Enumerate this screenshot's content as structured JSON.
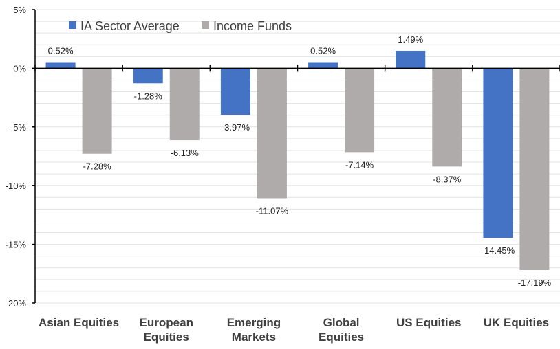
{
  "chart_data": {
    "type": "bar",
    "categories": [
      [
        "Asian Equities"
      ],
      [
        "European",
        "Equities"
      ],
      [
        "Emerging",
        "Markets"
      ],
      [
        "Global",
        "Equities"
      ],
      [
        "US Equities"
      ],
      [
        "UK Equities"
      ]
    ],
    "series": [
      {
        "name": "IA Sector Average",
        "color": "#4472C4",
        "values": [
          0.52,
          -1.28,
          -3.97,
          0.52,
          1.49,
          -14.45
        ],
        "labels": [
          "0.52%",
          "-1.28%",
          "-3.97%",
          "0.52%",
          "1.49%",
          "-14.45%"
        ]
      },
      {
        "name": "Income Funds",
        "color": "#AFABAB",
        "values": [
          -7.28,
          -6.13,
          -11.07,
          -7.14,
          -8.37,
          -17.19
        ],
        "labels": [
          "-7.28%",
          "-6.13%",
          "-11.07%",
          "-7.14%",
          "-8.37%",
          "-17.19%"
        ]
      }
    ],
    "ylim": [
      -20,
      5
    ],
    "yticks": [
      5,
      0,
      -5,
      -10,
      -15,
      -20
    ],
    "ytick_labels": [
      "5%",
      "0%",
      "-5%",
      "-10%",
      "-15%",
      "-20%"
    ],
    "minor_grid_step": 1,
    "grid": true,
    "legend_position": "top-left"
  }
}
